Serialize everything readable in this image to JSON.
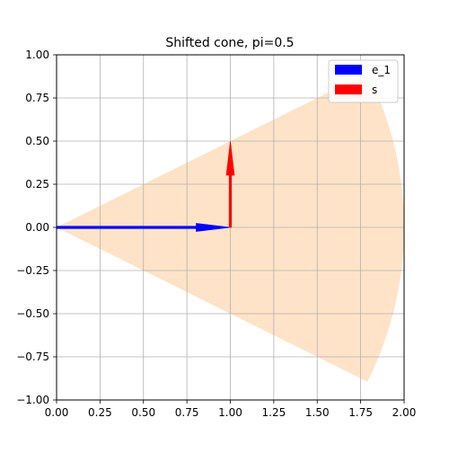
{
  "chart_data": {
    "type": "area",
    "title": "Shifted cone, pi=0.5",
    "xlabel": "",
    "ylabel": "",
    "xlim": [
      0.0,
      2.0
    ],
    "ylim": [
      -1.0,
      1.0
    ],
    "xticks": [
      0.0,
      0.25,
      0.5,
      0.75,
      1.0,
      1.25,
      1.5,
      1.75,
      2.0
    ],
    "yticks": [
      -1.0,
      -0.75,
      -0.5,
      -0.25,
      0.0,
      0.25,
      0.5,
      0.75,
      1.0
    ],
    "xtick_labels": [
      "0.00",
      "0.25",
      "0.50",
      "0.75",
      "1.00",
      "1.25",
      "1.50",
      "1.75",
      "2.00"
    ],
    "ytick_labels": [
      "−1.00",
      "−0.75",
      "−0.50",
      "−0.25",
      "0.00",
      "0.25",
      "0.50",
      "0.75",
      "1.00"
    ],
    "grid": true,
    "legend_position": "top-right",
    "cone": {
      "apex": [
        0.0,
        0.0
      ],
      "radius": 2.0,
      "angle_start_deg": -26.565,
      "angle_end_deg": 26.565,
      "color": "#ffe3c8"
    },
    "series": [
      {
        "name": "e_1",
        "from": [
          0.0,
          0.0
        ],
        "to": [
          1.0,
          0.0
        ],
        "color": "#0000ff"
      },
      {
        "name": "s",
        "from": [
          1.0,
          0.0
        ],
        "to": [
          1.0,
          0.5
        ],
        "color": "#ff0000"
      }
    ]
  }
}
